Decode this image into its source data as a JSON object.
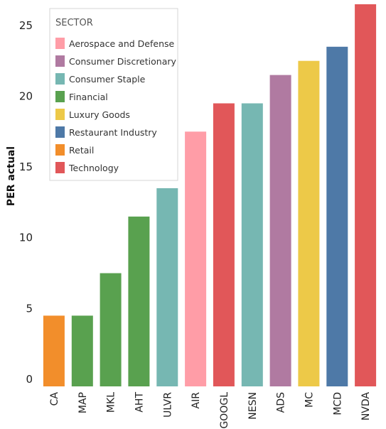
{
  "chart_data": {
    "type": "bar",
    "title": "",
    "xlabel": "",
    "ylabel": "PER actual",
    "ylim": [
      0,
      27
    ],
    "yticks": [
      0,
      5,
      10,
      15,
      20,
      25
    ],
    "grid": false,
    "legend_position": "top-left",
    "legend_title": "SECTOR",
    "sectors": [
      {
        "name": "Aerospace and Defense",
        "color": "#FF9DA7"
      },
      {
        "name": "Consumer Discretionary",
        "color": "#B07AA1"
      },
      {
        "name": "Consumer Staple",
        "color": "#76B7B2"
      },
      {
        "name": "Financial",
        "color": "#59A14F"
      },
      {
        "name": "Luxury Goods",
        "color": "#EDC948"
      },
      {
        "name": "Restaurant Industry",
        "color": "#4E79A7"
      },
      {
        "name": "Retail",
        "color": "#F28E2B"
      },
      {
        "name": "Technology",
        "color": "#E15759"
      }
    ],
    "categories": [
      "CA",
      "MAP",
      "MKL",
      "AHT",
      "ULVR",
      "AIR",
      "GOOGL",
      "NESN",
      "ADS",
      "MC",
      "MCD",
      "NVDA"
    ],
    "values": [
      5,
      5,
      8,
      12,
      14,
      18,
      20,
      20,
      22,
      23,
      24,
      27
    ],
    "bar_sectors": [
      "Retail",
      "Financial",
      "Financial",
      "Financial",
      "Consumer Staple",
      "Aerospace and Defense",
      "Technology",
      "Consumer Staple",
      "Consumer Discretionary",
      "Luxury Goods",
      "Restaurant Industry",
      "Technology"
    ]
  }
}
